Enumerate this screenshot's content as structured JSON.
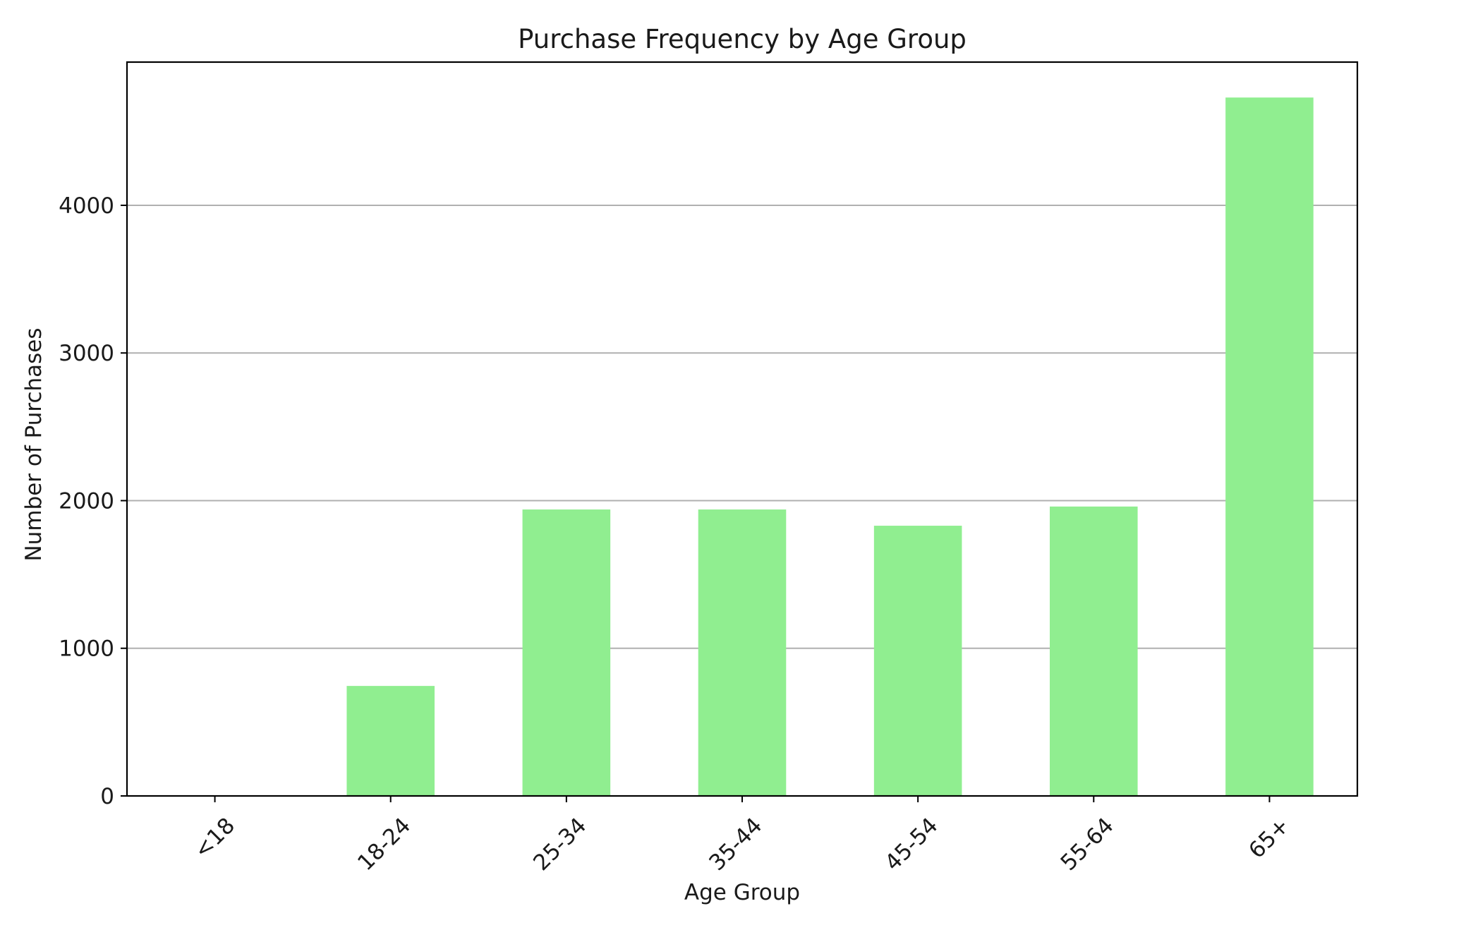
{
  "chart_data": {
    "type": "bar",
    "title": "Purchase Frequency by Age Group",
    "xlabel": "Age Group",
    "ylabel": "Number of Purchases",
    "categories": [
      "<18",
      "18-24",
      "25-34",
      "35-44",
      "45-54",
      "55-64",
      "65+"
    ],
    "values": [
      0,
      745,
      1940,
      1940,
      1830,
      1960,
      4730
    ],
    "ylim": [
      0,
      4970
    ],
    "yticks": [
      0,
      1000,
      2000,
      3000,
      4000
    ],
    "ytick_labels": [
      "0",
      "1000",
      "2000",
      "3000",
      "4000"
    ],
    "grid": "y",
    "bar_color": "#90ee90",
    "grid_color": "#b0b0b0",
    "axis_color": "#000000"
  }
}
